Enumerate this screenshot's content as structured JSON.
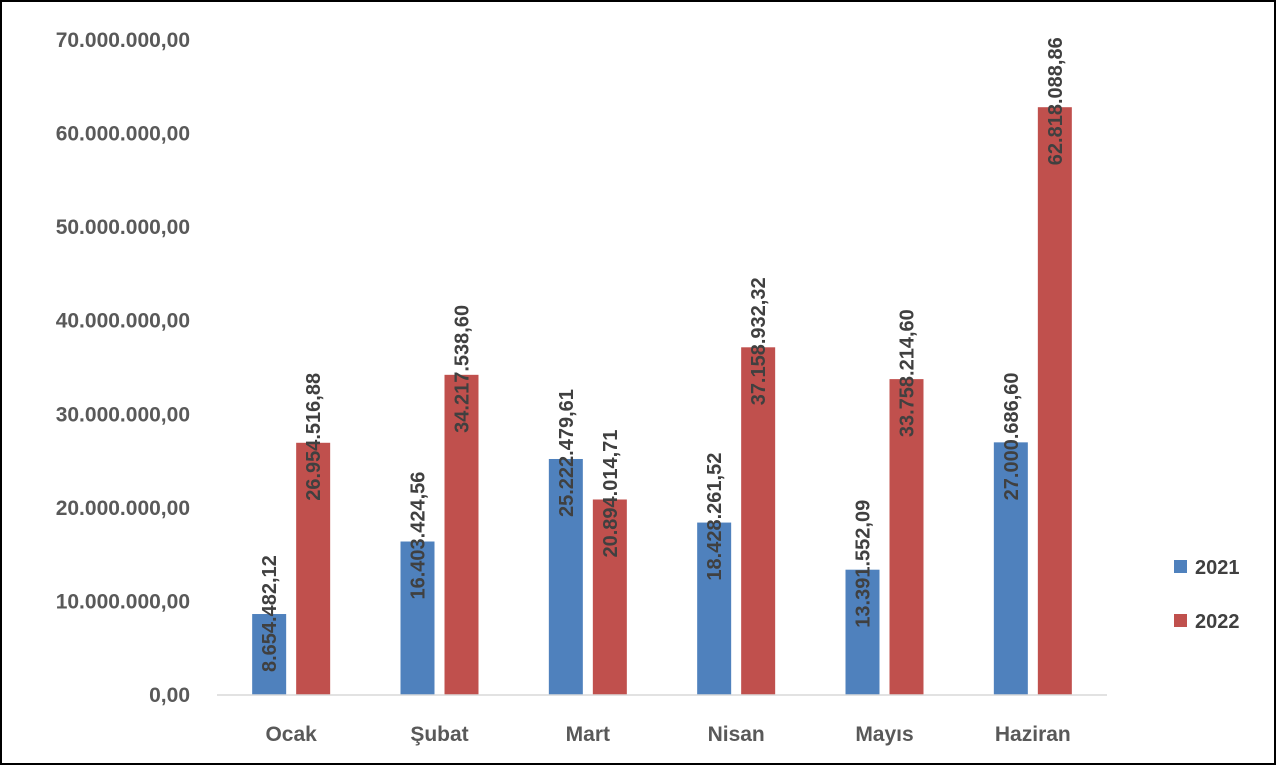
{
  "chart_data": {
    "type": "bar",
    "categories": [
      "Ocak",
      "Şubat",
      "Mart",
      "Nisan",
      "Mayıs",
      "Haziran"
    ],
    "series": [
      {
        "name": "2021",
        "color": "#4F81BD",
        "values": [
          8654482.12,
          16403424.56,
          25222479.61,
          18428261.52,
          13391552.09,
          27000686.6
        ],
        "labels": [
          "8.654.482,12",
          "16.403.424,56",
          "25.222.479,61",
          "18.428.261,52",
          "13.391.552,09",
          "27.000.686,60"
        ]
      },
      {
        "name": "2022",
        "color": "#C0504D",
        "values": [
          26954516.88,
          34217538.6,
          20894014.71,
          37158932.32,
          33758214.6,
          62818088.86
        ],
        "labels": [
          "26.954.516,88",
          "34.217.538,60",
          "20.894.014,71",
          "37.158.932,32",
          "33.758.214,60",
          "62.818.088,86"
        ]
      }
    ],
    "ylim": [
      0,
      70000000
    ],
    "yticks": [
      0,
      10000000,
      20000000,
      30000000,
      40000000,
      50000000,
      60000000,
      70000000
    ],
    "ytick_labels": [
      "0,00",
      "10.000.000,00",
      "20.000.000,00",
      "30.000.000,00",
      "40.000.000,00",
      "50.000.000,00",
      "60.000.000,00",
      "70.000.000,00"
    ],
    "title": "",
    "xlabel": "",
    "ylabel": "",
    "grid": false,
    "legend_position": "right"
  }
}
